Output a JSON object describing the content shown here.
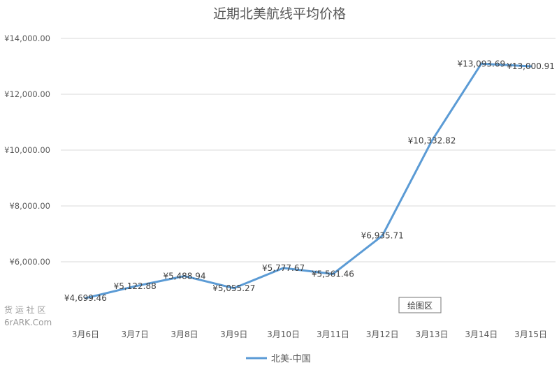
{
  "chart_data": {
    "type": "line",
    "title": "近期北美航线平均价格",
    "categories": [
      "3月6日",
      "3月7日",
      "3月8日",
      "3月9日",
      "3月10日",
      "3月11日",
      "3月12日",
      "3月13日",
      "3月14日",
      "3月15日"
    ],
    "series": [
      {
        "name": "北美-中国",
        "values": [
          4699.46,
          5122.88,
          5488.94,
          5055.27,
          5777.67,
          5561.46,
          6935.71,
          10332.82,
          13093.69,
          13000.91
        ],
        "labels": [
          "¥4,699.46",
          "¥5,122.88",
          "¥5,488.94",
          "¥5,055.27",
          "¥5,777.67",
          "¥5,561.46",
          "¥6,935.71",
          "¥10,332.82",
          "¥13,093.69",
          "¥13,000.91"
        ],
        "color": "#5B9BD5"
      }
    ],
    "ylim": [
      4000,
      14000
    ],
    "yticks": [
      {
        "value": 14000,
        "label": "¥14,000.00"
      },
      {
        "value": 12000,
        "label": "¥12,000.00"
      },
      {
        "value": 10000,
        "label": "¥10,000.00"
      },
      {
        "value": 8000,
        "label": "¥8,000.00"
      },
      {
        "value": 6000,
        "label": "¥6,000.00"
      }
    ],
    "xlabel": "",
    "ylabel": "",
    "grid": true,
    "legend_position": "bottom"
  },
  "tooltip": "绘图区",
  "watermark": {
    "line1": "货 运 社 区",
    "line2": "6rARK.Com"
  },
  "colors": {
    "line": "#5B9BD5",
    "grid": "#d9d9d9",
    "text": "#595959"
  }
}
